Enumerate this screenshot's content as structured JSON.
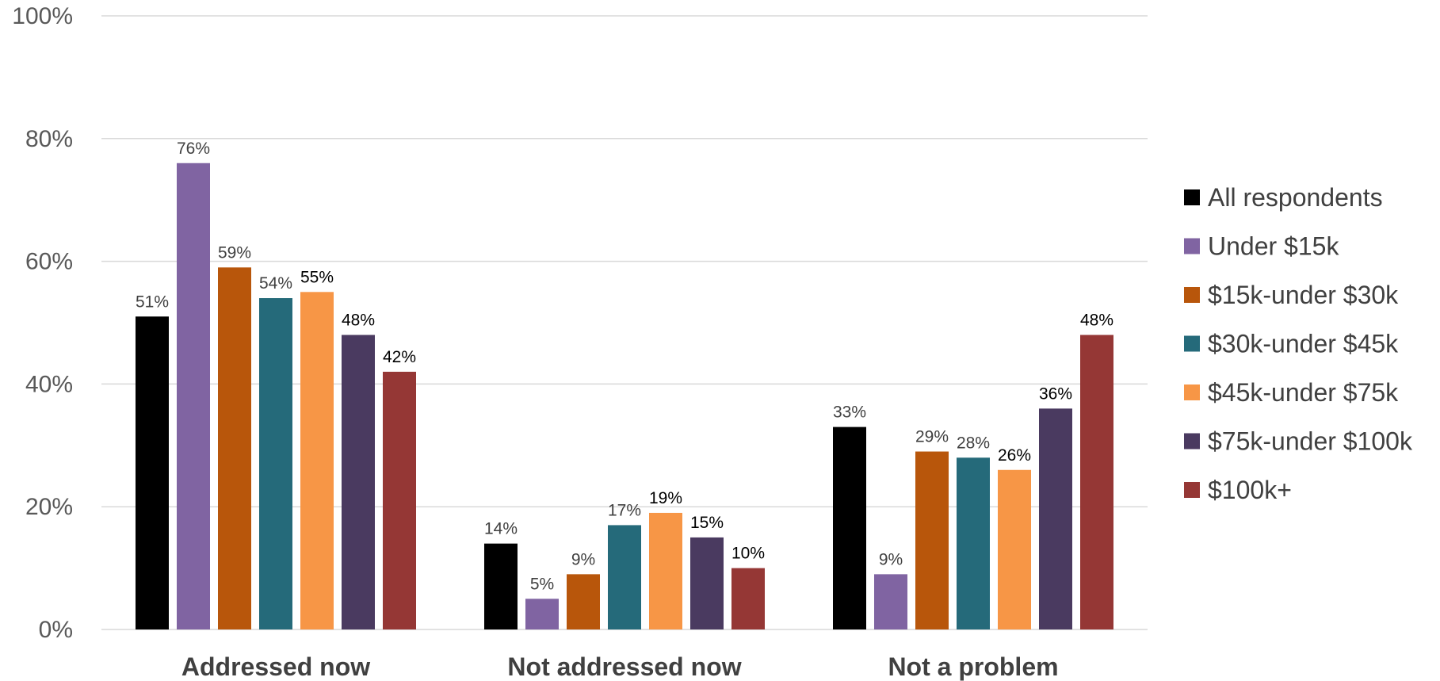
{
  "chart_data": {
    "type": "bar",
    "categories": [
      "Addressed now",
      "Not addressed now",
      "Not a problem"
    ],
    "series": [
      {
        "name": "All respondents",
        "color": "#000000",
        "values": [
          51,
          14,
          33
        ]
      },
      {
        "name": "Under $15k",
        "color": "#8064A2",
        "values": [
          76,
          5,
          9
        ]
      },
      {
        "name": "$15k-under $30k",
        "color": "#B8560B",
        "values": [
          59,
          9,
          29
        ]
      },
      {
        "name": "$30k-under $45k",
        "color": "#256A7A",
        "values": [
          54,
          17,
          28
        ]
      },
      {
        "name": "$45k-under $75k",
        "color": "#F79646",
        "values": [
          55,
          19,
          26
        ]
      },
      {
        "name": "$75k-under $100k",
        "color": "#4A3A60",
        "values": [
          48,
          15,
          36
        ]
      },
      {
        "name": "$100k+",
        "color": "#953735",
        "values": [
          42,
          10,
          48
        ]
      }
    ],
    "value_labels": [
      [
        "51%",
        "14%",
        "33%"
      ],
      [
        "76%",
        "5%",
        "9%"
      ],
      [
        "59%",
        "9%",
        "29%"
      ],
      [
        "54%",
        "17%",
        "28%"
      ],
      [
        "55%",
        "19%",
        "26%"
      ],
      [
        "48%",
        "15%",
        "36%"
      ],
      [
        "42%",
        "10%",
        "48%"
      ]
    ],
    "y_ticks": [
      "0%",
      "20%",
      "40%",
      "60%",
      "80%",
      "100%"
    ],
    "ylim": [
      0,
      100
    ],
    "grid": true,
    "legend_position": "right",
    "title": "",
    "xlabel": "",
    "ylabel": ""
  }
}
